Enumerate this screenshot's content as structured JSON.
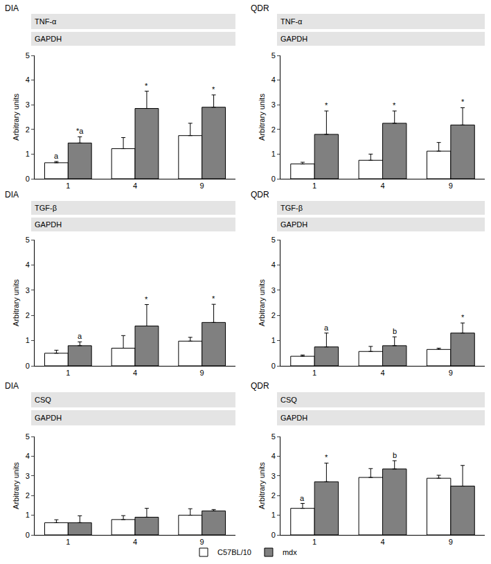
{
  "chart_data": [
    {
      "type": "bar",
      "title": "DIA",
      "blot": [
        "TNF-α",
        "GAPDH"
      ],
      "y_label": "Arbitrary units",
      "categories": [
        "1",
        "4",
        "9"
      ],
      "series": [
        {
          "name": "C57BL/10",
          "color": "#ffffff",
          "values": [
            0.65,
            1.22,
            1.75
          ],
          "errors": [
            0.05,
            0.45,
            0.5
          ]
        },
        {
          "name": "mdx",
          "color": "#808080",
          "values": [
            1.45,
            2.85,
            2.9
          ],
          "errors": [
            0.25,
            0.7,
            0.5
          ]
        }
      ],
      "annotations": [
        {
          "category": "1",
          "series": "C57BL/10",
          "text": "a"
        },
        {
          "category": "1",
          "series": "mdx",
          "text": "*a"
        },
        {
          "category": "4",
          "series": "mdx",
          "text": "*"
        },
        {
          "category": "9",
          "series": "mdx",
          "text": "*"
        }
      ],
      "ylim": [
        0,
        5
      ],
      "yticks": [
        0,
        1,
        2,
        3,
        4,
        5
      ],
      "grid": false,
      "legend": "bottom"
    },
    {
      "type": "bar",
      "title": "QDR",
      "blot": [
        "TNF-α",
        "GAPDH"
      ],
      "y_label": "Arbitrary units",
      "categories": [
        "1",
        "4",
        "9"
      ],
      "series": [
        {
          "name": "C57BL/10",
          "color": "#ffffff",
          "values": [
            0.6,
            0.75,
            1.12
          ],
          "errors": [
            0.07,
            0.25,
            0.35
          ]
        },
        {
          "name": "mdx",
          "color": "#808080",
          "values": [
            1.8,
            2.25,
            2.18
          ],
          "errors": [
            0.95,
            0.5,
            0.7
          ]
        }
      ],
      "annotations": [
        {
          "category": "1",
          "series": "mdx",
          "text": "*"
        },
        {
          "category": "4",
          "series": "mdx",
          "text": "*"
        },
        {
          "category": "9",
          "series": "mdx",
          "text": "*"
        }
      ],
      "ylim": [
        0,
        5
      ],
      "yticks": [
        0,
        1,
        2,
        3,
        4,
        5
      ],
      "grid": false
    },
    {
      "type": "bar",
      "title": "DIA",
      "blot": [
        "TGF-β",
        "GAPDH"
      ],
      "y_label": "Arbitrary units",
      "categories": [
        "1",
        "4",
        "9"
      ],
      "series": [
        {
          "name": "C57BL/10",
          "color": "#ffffff",
          "values": [
            0.5,
            0.7,
            0.98
          ],
          "errors": [
            0.12,
            0.5,
            0.15
          ]
        },
        {
          "name": "mdx",
          "color": "#808080",
          "values": [
            0.8,
            1.58,
            1.72
          ],
          "errors": [
            0.15,
            0.85,
            0.72
          ]
        }
      ],
      "annotations": [
        {
          "category": "1",
          "series": "mdx",
          "text": "a"
        },
        {
          "category": "4",
          "series": "mdx",
          "text": "*"
        },
        {
          "category": "9",
          "series": "mdx",
          "text": "*"
        }
      ],
      "ylim": [
        0,
        5
      ],
      "yticks": [
        0,
        1,
        2,
        3,
        4,
        5
      ],
      "grid": false
    },
    {
      "type": "bar",
      "title": "QDR",
      "blot": [
        "TGF-β",
        "GAPDH"
      ],
      "y_label": "Arbitrary units",
      "categories": [
        "1",
        "4",
        "9"
      ],
      "series": [
        {
          "name": "C57BL/10",
          "color": "#ffffff",
          "values": [
            0.38,
            0.57,
            0.65
          ],
          "errors": [
            0.05,
            0.2,
            0.05
          ]
        },
        {
          "name": "mdx",
          "color": "#808080",
          "values": [
            0.75,
            0.8,
            1.3
          ],
          "errors": [
            0.55,
            0.35,
            0.4
          ]
        }
      ],
      "annotations": [
        {
          "category": "1",
          "series": "mdx",
          "text": "a"
        },
        {
          "category": "4",
          "series": "mdx",
          "text": "b"
        },
        {
          "category": "9",
          "series": "mdx",
          "text": "*"
        }
      ],
      "ylim": [
        0,
        5
      ],
      "yticks": [
        0,
        1,
        2,
        3,
        4,
        5
      ],
      "grid": false
    },
    {
      "type": "bar",
      "title": "DIA",
      "blot": [
        "CSQ",
        "GAPDH"
      ],
      "y_label": "Arbitrary units",
      "categories": [
        "1",
        "4",
        "9"
      ],
      "series": [
        {
          "name": "C57BL/10",
          "color": "#ffffff",
          "values": [
            0.62,
            0.78,
            1.0
          ],
          "errors": [
            0.15,
            0.2,
            0.33
          ]
        },
        {
          "name": "mdx",
          "color": "#808080",
          "values": [
            0.62,
            0.9,
            1.22
          ],
          "errors": [
            0.35,
            0.45,
            0.07
          ]
        }
      ],
      "annotations": [],
      "ylim": [
        0,
        5
      ],
      "yticks": [
        0,
        1,
        2,
        3,
        4,
        5
      ],
      "grid": false
    },
    {
      "type": "bar",
      "title": "QDR",
      "blot": [
        "CSQ",
        "GAPDH"
      ],
      "y_label": "Arbitrary units",
      "categories": [
        "1",
        "4",
        "9"
      ],
      "series": [
        {
          "name": "C57BL/10",
          "color": "#ffffff",
          "values": [
            1.35,
            2.92,
            2.88
          ],
          "errors": [
            0.25,
            0.45,
            0.15
          ]
        },
        {
          "name": "mdx",
          "color": "#808080",
          "values": [
            2.7,
            3.35,
            2.48
          ],
          "errors": [
            0.95,
            0.42,
            1.05
          ]
        }
      ],
      "annotations": [
        {
          "category": "1",
          "series": "C57BL/10",
          "text": "a"
        },
        {
          "category": "1",
          "series": "mdx",
          "text": "*"
        },
        {
          "category": "4",
          "series": "mdx",
          "text": "b"
        }
      ],
      "ylim": [
        0,
        5
      ],
      "yticks": [
        0,
        1,
        2,
        3,
        4,
        5
      ],
      "grid": false
    }
  ]
}
